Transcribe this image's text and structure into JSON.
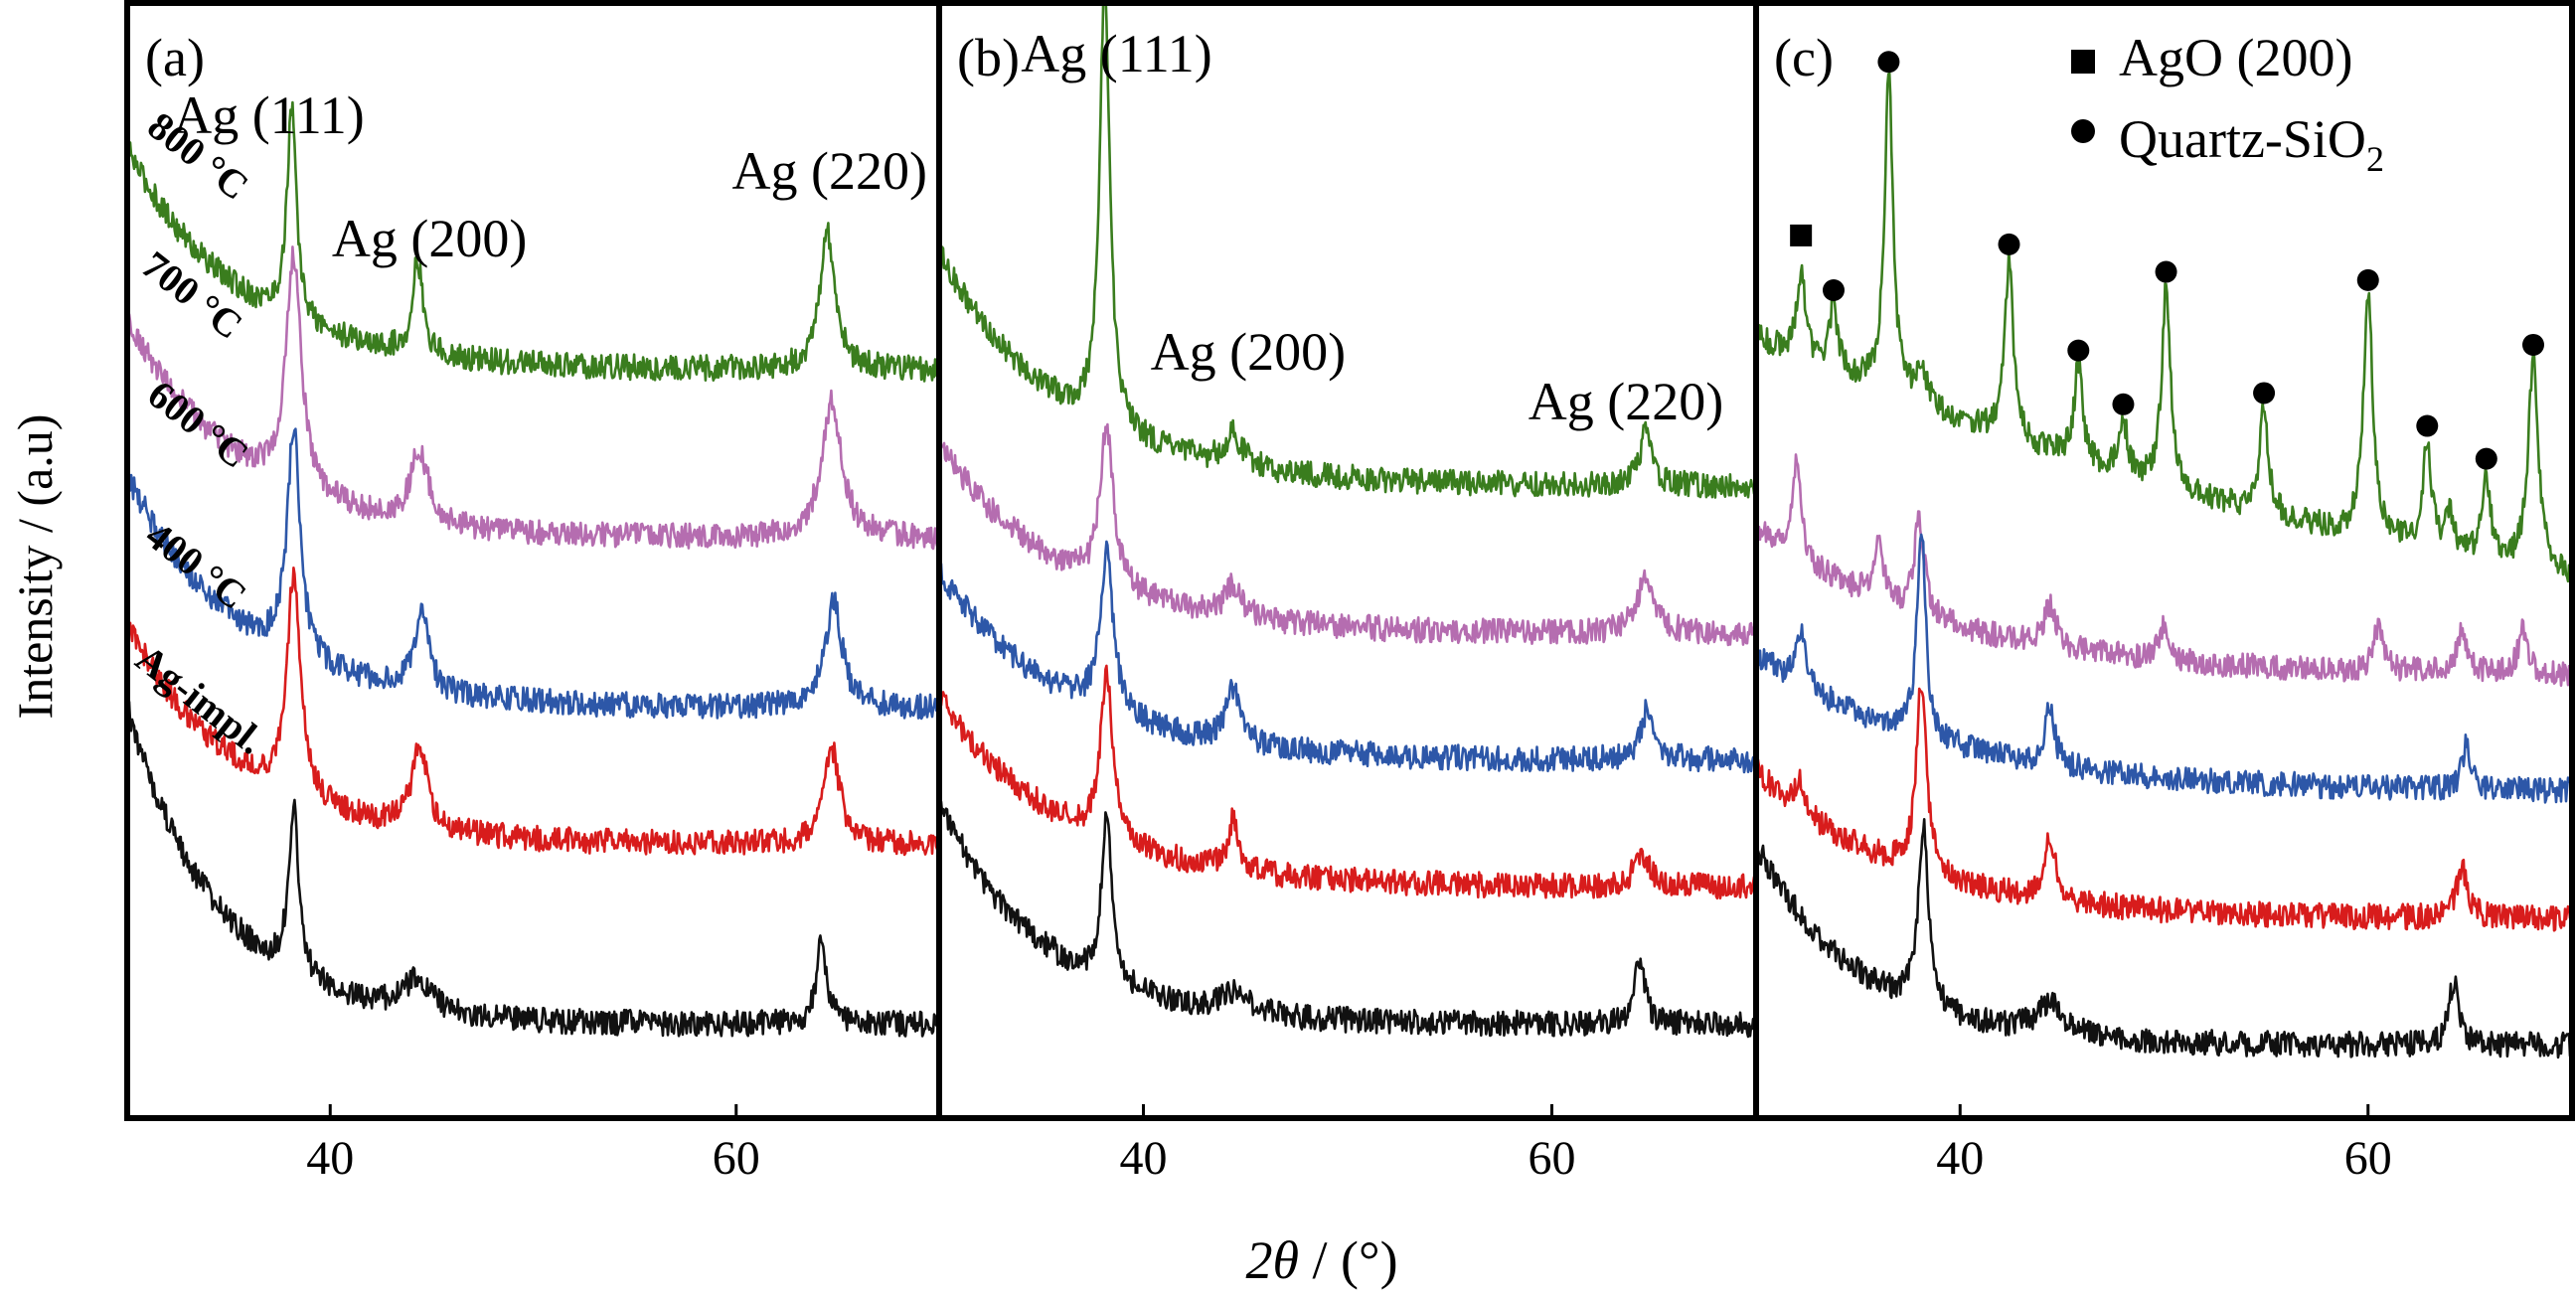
{
  "figure": {
    "ylabel": "Intensity / (a.u)",
    "xlabel_symbol": "2θ",
    "xlabel_unit": " / (°)"
  },
  "legend": {
    "items": [
      {
        "marker": "square",
        "label": "AgO (200)"
      },
      {
        "marker": "circle",
        "label": "Quartz-SiO",
        "subscript": "2"
      }
    ]
  },
  "temperature_labels": [
    "800 °C",
    "700 °C",
    "600 °C",
    "400 °C",
    "Ag-impl."
  ],
  "colors": {
    "800 °C": "#3a7d1e",
    "700 °C": "#b56db0",
    "600 °C": "#2d57a8",
    "400 °C": "#d81c1c",
    "Ag-impl.": "#111111"
  },
  "chart_data": [
    {
      "type": "line",
      "panel": "(a)",
      "xlabel": "2θ / (°)",
      "ylabel": "Intensity / (a.u)",
      "xlim": [
        30,
        70
      ],
      "xticks": [
        40,
        60
      ],
      "ylim": [
        0,
        100
      ],
      "grid": false,
      "peak_annotations": [
        {
          "label": "Ag (111)",
          "x": 38.2
        },
        {
          "label": "Ag (200)",
          "x": 44.4
        },
        {
          "label": "Ag (220)",
          "x": 64.6
        }
      ],
      "series": [
        {
          "name": "800 °C",
          "offset": 65,
          "bg_start": 25,
          "bg_decay": 5.5,
          "bg_floor": 4,
          "peaks": [
            {
              "x": 38.1,
              "h": 20,
              "w": 0.28
            },
            {
              "x": 44.3,
              "h": 9,
              "w": 0.3
            },
            {
              "x": 64.5,
              "h": 13,
              "w": 0.45
            }
          ]
        },
        {
          "name": "700 °C",
          "offset": 49,
          "bg_start": 25,
          "bg_decay": 5.5,
          "bg_floor": 4,
          "peaks": [
            {
              "x": 38.2,
              "h": 22,
              "w": 0.45
            },
            {
              "x": 44.4,
              "h": 7,
              "w": 0.5
            },
            {
              "x": 64.7,
              "h": 13,
              "w": 0.6
            }
          ]
        },
        {
          "name": "600 °C",
          "offset": 34,
          "bg_start": 25,
          "bg_decay": 5.5,
          "bg_floor": 3,
          "peaks": [
            {
              "x": 38.2,
              "h": 22,
              "w": 0.38
            },
            {
              "x": 44.5,
              "h": 8,
              "w": 0.4
            },
            {
              "x": 64.8,
              "h": 10,
              "w": 0.5
            }
          ]
        },
        {
          "name": "400 °C",
          "offset": 21,
          "bg_start": 24,
          "bg_decay": 5.5,
          "bg_floor": 3,
          "peaks": [
            {
              "x": 38.2,
              "h": 21,
              "w": 0.4
            },
            {
              "x": 44.4,
              "h": 8,
              "w": 0.45
            },
            {
              "x": 64.7,
              "h": 9,
              "w": 0.5
            }
          ]
        },
        {
          "name": "Ag-impl.",
          "offset": 5,
          "bg_start": 32,
          "bg_decay": 4.5,
          "bg_floor": 2,
          "peaks": [
            {
              "x": 38.2,
              "h": 16,
              "w": 0.3
            },
            {
              "x": 44.3,
              "h": 3,
              "w": 0.9
            },
            {
              "x": 64.2,
              "h": 8,
              "w": 0.3
            }
          ]
        }
      ]
    },
    {
      "type": "line",
      "panel": "(b)",
      "xlabel": "2θ / (°)",
      "ylabel": "Intensity / (a.u)",
      "xlim": [
        30,
        70
      ],
      "xticks": [
        40,
        60
      ],
      "ylim": [
        0,
        100
      ],
      "grid": false,
      "peak_annotations": [
        {
          "label": "Ag (111)",
          "x": 38.2
        },
        {
          "label": "Ag (200)",
          "x": 44.4
        },
        {
          "label": "Ag (220)",
          "x": 64.6
        }
      ],
      "series": [
        {
          "name": "800 °C",
          "offset": 56,
          "bg_start": 24,
          "bg_decay": 6,
          "bg_floor": 2,
          "peaks": [
            {
              "x": 38.1,
              "h": 42,
              "w": 0.3
            },
            {
              "x": 44.4,
              "h": 3,
              "w": 0.5
            },
            {
              "x": 64.6,
              "h": 5,
              "w": 0.35
            }
          ]
        },
        {
          "name": "700 °C",
          "offset": 42,
          "bg_start": 20,
          "bg_decay": 6,
          "bg_floor": 2,
          "peaks": [
            {
              "x": 38.2,
              "h": 15,
              "w": 0.4
            },
            {
              "x": 44.4,
              "h": 3,
              "w": 0.5
            },
            {
              "x": 64.6,
              "h": 5,
              "w": 0.55
            }
          ]
        },
        {
          "name": "600 °C",
          "offset": 30,
          "bg_start": 20,
          "bg_decay": 6,
          "bg_floor": 2,
          "peaks": [
            {
              "x": 38.2,
              "h": 15,
              "w": 0.4
            },
            {
              "x": 44.4,
              "h": 5,
              "w": 0.45
            },
            {
              "x": 64.7,
              "h": 5,
              "w": 0.4
            }
          ]
        },
        {
          "name": "400 °C",
          "offset": 18,
          "bg_start": 20,
          "bg_decay": 6,
          "bg_floor": 2,
          "peaks": [
            {
              "x": 38.2,
              "h": 16,
              "w": 0.35
            },
            {
              "x": 44.4,
              "h": 5,
              "w": 0.3
            },
            {
              "x": 64.4,
              "h": 3,
              "w": 0.45
            }
          ]
        },
        {
          "name": "Ag-impl.",
          "offset": 6,
          "bg_start": 22,
          "bg_decay": 5,
          "bg_floor": 1,
          "peaks": [
            {
              "x": 38.2,
              "h": 16,
              "w": 0.3
            },
            {
              "x": 44.4,
              "h": 2,
              "w": 0.8
            },
            {
              "x": 64.3,
              "h": 6,
              "w": 0.3
            }
          ]
        }
      ]
    },
    {
      "type": "line",
      "panel": "(c)",
      "xlabel": "2θ / (°)",
      "ylabel": "Intensity / (a.u)",
      "xlim": [
        30,
        70
      ],
      "xticks": [
        40,
        60
      ],
      "ylim": [
        0,
        100
      ],
      "grid": false,
      "legend_position": "top-right",
      "ago_markers_x": [
        32.2
      ],
      "quartz_markers_x": [
        33.8,
        36.5,
        42.4,
        45.8,
        48.0,
        50.1,
        54.9,
        60.0,
        62.9,
        65.8,
        68.1
      ],
      "series": [
        {
          "name": "800 °C",
          "offset": 50,
          "bg_start": 22,
          "bg_decay": 40,
          "bg_floor": -14,
          "peaks": [
            {
              "x": 32.2,
              "h": 8,
              "w": 0.25
            },
            {
              "x": 33.8,
              "h": 6,
              "w": 0.25
            },
            {
              "x": 36.5,
              "h": 30,
              "w": 0.25
            },
            {
              "x": 38.1,
              "h": 4,
              "w": 0.3
            },
            {
              "x": 42.4,
              "h": 17,
              "w": 0.25
            },
            {
              "x": 45.8,
              "h": 9,
              "w": 0.25
            },
            {
              "x": 48.0,
              "h": 5,
              "w": 0.25
            },
            {
              "x": 50.1,
              "h": 19,
              "w": 0.25
            },
            {
              "x": 54.9,
              "h": 10,
              "w": 0.25
            },
            {
              "x": 60.0,
              "h": 23,
              "w": 0.28
            },
            {
              "x": 62.9,
              "h": 10,
              "w": 0.25
            },
            {
              "x": 64.0,
              "h": 4,
              "w": 0.25
            },
            {
              "x": 65.8,
              "h": 8,
              "w": 0.25
            },
            {
              "x": 68.1,
              "h": 20,
              "w": 0.3
            }
          ]
        },
        {
          "name": "700 °C",
          "offset": 40,
          "bg_start": 14,
          "bg_decay": 9,
          "bg_floor": 0,
          "peaks": [
            {
              "x": 32.0,
              "h": 9,
              "w": 0.25
            },
            {
              "x": 36.0,
              "h": 5,
              "w": 0.3
            },
            {
              "x": 38.0,
              "h": 9,
              "w": 0.3
            },
            {
              "x": 44.4,
              "h": 4,
              "w": 0.35
            },
            {
              "x": 50.0,
              "h": 3,
              "w": 0.3
            },
            {
              "x": 60.5,
              "h": 4,
              "w": 0.3
            },
            {
              "x": 64.6,
              "h": 4,
              "w": 0.3
            },
            {
              "x": 67.6,
              "h": 4,
              "w": 0.3
            }
          ]
        },
        {
          "name": "600 °C",
          "offset": 29,
          "bg_start": 13,
          "bg_decay": 9,
          "bg_floor": 0,
          "peaks": [
            {
              "x": 32.2,
              "h": 5,
              "w": 0.25
            },
            {
              "x": 38.1,
              "h": 20,
              "w": 0.25
            },
            {
              "x": 44.4,
              "h": 6,
              "w": 0.25
            },
            {
              "x": 64.8,
              "h": 4,
              "w": 0.25
            }
          ]
        },
        {
          "name": "400 °C",
          "offset": 17,
          "bg_start": 14,
          "bg_decay": 7,
          "bg_floor": 0,
          "peaks": [
            {
              "x": 32.1,
              "h": 3,
              "w": 0.25
            },
            {
              "x": 38.1,
              "h": 18,
              "w": 0.3
            },
            {
              "x": 44.4,
              "h": 6,
              "w": 0.35
            },
            {
              "x": 64.6,
              "h": 5,
              "w": 0.3
            }
          ]
        },
        {
          "name": "Ag-impl.",
          "offset": 4,
          "bg_start": 20,
          "bg_decay": 5,
          "bg_floor": 1,
          "peaks": [
            {
              "x": 38.2,
              "h": 17,
              "w": 0.3
            },
            {
              "x": 44.4,
              "h": 3,
              "w": 0.8
            },
            {
              "x": 64.2,
              "h": 6,
              "w": 0.3
            }
          ]
        }
      ]
    }
  ]
}
